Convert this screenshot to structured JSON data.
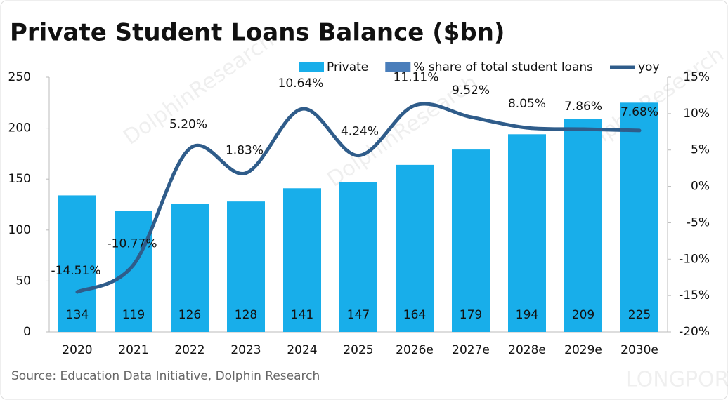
{
  "chart_data": {
    "type": "bar-line",
    "title": "Private Student Loans Balance  ($bn)",
    "source": "Source:  Education Data Initiative, Dolphin Research",
    "watermarks": [
      "DolphinResearch",
      "LONGPORT"
    ],
    "categories": [
      "2020",
      "2021",
      "2022",
      "2023",
      "2024",
      "2025",
      "2026e",
      "2027e",
      "2028e",
      "2029e",
      "2030e"
    ],
    "series": [
      {
        "name": "Private",
        "type": "bar",
        "color": "#18aeea",
        "values": [
          134,
          119,
          126,
          128,
          141,
          147,
          164,
          179,
          194,
          209,
          225
        ]
      },
      {
        "name": "% share of total student loans",
        "type": "bar",
        "color": "#4a7ebb",
        "values": [
          null,
          null,
          null,
          null,
          null,
          null,
          null,
          null,
          null,
          null,
          null
        ]
      },
      {
        "name": "yoy",
        "type": "line",
        "axis": "y2",
        "color": "#2f5c8a",
        "values": [
          -14.51,
          -10.77,
          5.2,
          1.83,
          10.64,
          4.24,
          11.11,
          9.52,
          8.05,
          7.86,
          7.68
        ],
        "value_labels": [
          "-14.51%",
          "-10.77%",
          "5.20%",
          "1.83%",
          "10.64%",
          "4.24%",
          "11.11%",
          "9.52%",
          "8.05%",
          "7.86%",
          "7.68%"
        ]
      }
    ],
    "ylim": [
      0,
      250
    ],
    "yticks": [
      0,
      50,
      100,
      150,
      200,
      250
    ],
    "y2lim": [
      -20,
      15
    ],
    "y2ticks": [
      {
        "value": -20,
        "label": "-20%"
      },
      {
        "value": -15,
        "label": "-15%"
      },
      {
        "value": -10,
        "label": "-10%"
      },
      {
        "value": -5,
        "label": "-5%"
      },
      {
        "value": 0,
        "label": "0%"
      },
      {
        "value": 5,
        "label": "5%"
      },
      {
        "value": 10,
        "label": "10%"
      },
      {
        "value": 15,
        "label": "15%"
      }
    ],
    "legend": "top"
  }
}
